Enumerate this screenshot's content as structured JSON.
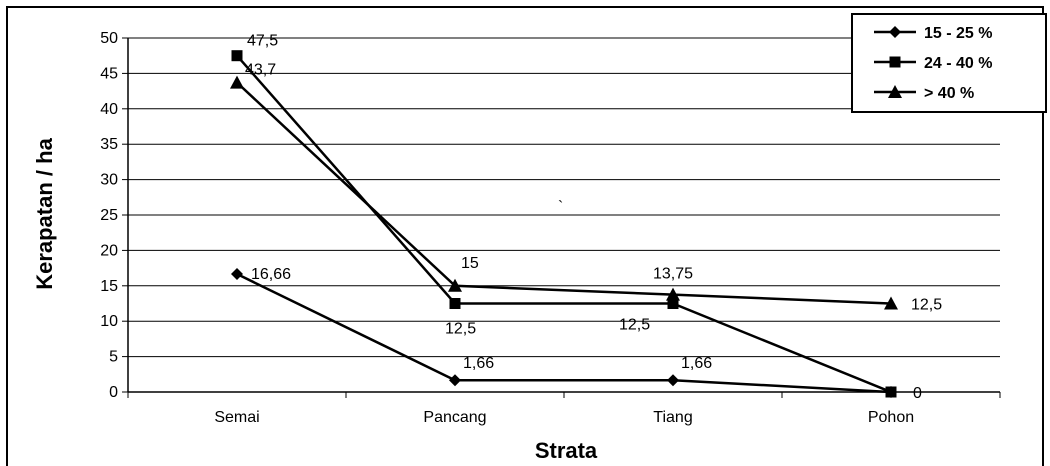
{
  "chart_data": {
    "type": "line",
    "title": "",
    "xlabel": "Strata",
    "ylabel": "Kerapatan / ha",
    "categories": [
      "Semai",
      "Pancang",
      "Tiang",
      "Pohon"
    ],
    "ylim": [
      0,
      50
    ],
    "yticks": [
      "0",
      "5",
      "10",
      "15",
      "20",
      "25",
      "30",
      "35",
      "40",
      "45",
      "50"
    ],
    "grid": true,
    "legend_position": "top-right",
    "series": [
      {
        "name": "15 - 25 %",
        "marker": "diamond",
        "values": [
          16.66,
          1.66,
          1.66,
          0
        ],
        "labels": [
          "16,66",
          "1,66",
          "1,66",
          "0"
        ]
      },
      {
        "name": "24 - 40 %",
        "marker": "square",
        "values": [
          47.5,
          12.5,
          12.5,
          0
        ],
        "labels": [
          "47,5",
          "12,5",
          "12,5",
          ""
        ]
      },
      {
        "name": "> 40 %",
        "marker": "triangle",
        "values": [
          43.7,
          15,
          13.75,
          12.5
        ],
        "labels": [
          "43,7",
          "15",
          "13,75",
          "12,5"
        ]
      }
    ],
    "annotation": "`"
  }
}
